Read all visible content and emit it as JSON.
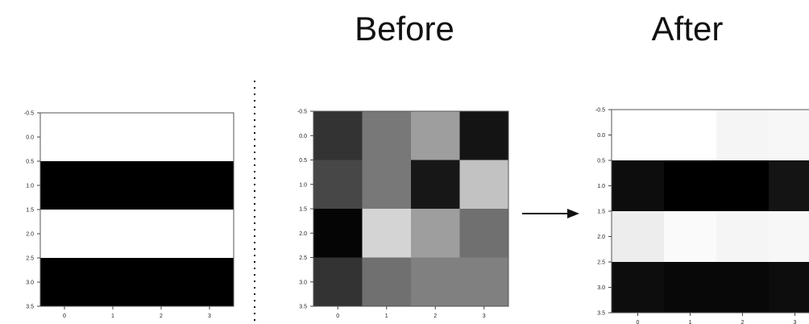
{
  "headers": {
    "before": "Before",
    "after": "After"
  },
  "chart_data": [
    {
      "type": "heatmap",
      "title": "",
      "x_ticks": [
        "0",
        "1",
        "2",
        "3"
      ],
      "y_ticks": [
        "-0.5",
        "0.0",
        "0.5",
        "1.0",
        "1.5",
        "2.0",
        "2.5",
        "3.0",
        "3.5"
      ],
      "xlim": [
        -0.5,
        3.5
      ],
      "ylim": [
        -0.5,
        3.5
      ],
      "colormap": "gray",
      "values": [
        [
          1,
          1,
          1,
          1
        ],
        [
          0,
          0,
          0,
          0
        ],
        [
          1,
          1,
          1,
          1
        ],
        [
          0,
          0,
          0,
          0
        ]
      ]
    },
    {
      "type": "heatmap",
      "title": "Before",
      "x_ticks": [
        "0",
        "1",
        "2",
        "3"
      ],
      "y_ticks": [
        "-0.5",
        "0.0",
        "0.5",
        "1.0",
        "1.5",
        "2.0",
        "2.5",
        "3.0",
        "3.5"
      ],
      "xlim": [
        -0.5,
        3.5
      ],
      "ylim": [
        -0.5,
        3.5
      ],
      "colormap": "gray",
      "values": [
        [
          0.2,
          0.47,
          0.62,
          0.08
        ],
        [
          0.28,
          0.47,
          0.09,
          0.76
        ],
        [
          0.02,
          0.83,
          0.62,
          0.44
        ],
        [
          0.2,
          0.44,
          0.5,
          0.5
        ]
      ]
    },
    {
      "type": "heatmap",
      "title": "After",
      "x_ticks": [
        "0",
        "1",
        "2",
        "3"
      ],
      "y_ticks": [
        "-0.5",
        "0.0",
        "0.5",
        "1.0",
        "1.5",
        "2.0",
        "2.5",
        "3.0",
        "3.5"
      ],
      "xlim": [
        -0.5,
        3.5
      ],
      "ylim": [
        -0.5,
        3.5
      ],
      "colormap": "gray",
      "values": [
        [
          1.0,
          1.0,
          0.96,
          0.97
        ],
        [
          0.05,
          0.0,
          0.0,
          0.08
        ],
        [
          0.93,
          0.98,
          0.96,
          0.97
        ],
        [
          0.05,
          0.03,
          0.03,
          0.05
        ]
      ]
    }
  ]
}
